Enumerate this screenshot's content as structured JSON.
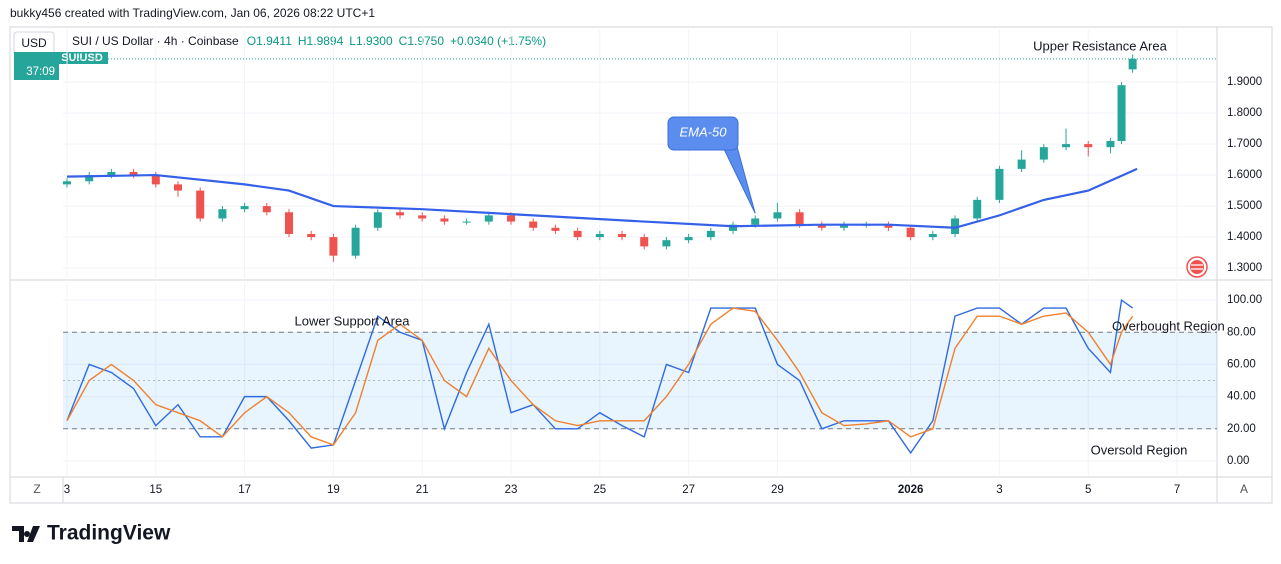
{
  "header": {
    "credit": "bukky456 created with TradingView.com, Jan 06, 2026 08:22 UTC+1",
    "currency": "USD",
    "symbol": "SUI / US Dollar · 4h · Coinbase",
    "ohlc": [
      "O1.9411",
      "H1.9894",
      "L1.9300",
      "C1.9750",
      "+0.0340 (+1.75%)"
    ],
    "countdown": "37:09",
    "ticker": "SUIUSD"
  },
  "chart_data": [
    {
      "type": "candlestick",
      "up_color": "#26a69a",
      "down_color": "#ef5350",
      "grid": true,
      "x": [
        13,
        13.5,
        14,
        14.5,
        15,
        15.5,
        16,
        16.5,
        17,
        17.5,
        18,
        18.5,
        19,
        19.5,
        20,
        20.5,
        21,
        21.5,
        22,
        22.5,
        23,
        23.5,
        24,
        24.5,
        25,
        25.5,
        26,
        26.5,
        27,
        27.5,
        28,
        28.5,
        29,
        29.5,
        30,
        30.5,
        31,
        31.5,
        32,
        32.5,
        33,
        33.5,
        34,
        34.5,
        35,
        35.5,
        36,
        36.5,
        36.75,
        37
      ],
      "open": [
        1.57,
        1.58,
        1.6,
        1.61,
        1.6,
        1.57,
        1.55,
        1.46,
        1.49,
        1.5,
        1.48,
        1.41,
        1.4,
        1.34,
        1.43,
        1.48,
        1.47,
        1.46,
        1.45,
        1.45,
        1.47,
        1.45,
        1.43,
        1.42,
        1.4,
        1.41,
        1.4,
        1.37,
        1.39,
        1.4,
        1.42,
        1.44,
        1.46,
        1.48,
        1.44,
        1.43,
        1.44,
        1.44,
        1.43,
        1.4,
        1.41,
        1.46,
        1.52,
        1.62,
        1.65,
        1.69,
        1.7,
        1.69,
        1.71,
        1.9411
      ],
      "high": [
        1.59,
        1.61,
        1.62,
        1.62,
        1.61,
        1.58,
        1.56,
        1.5,
        1.51,
        1.51,
        1.49,
        1.42,
        1.41,
        1.44,
        1.49,
        1.49,
        1.48,
        1.47,
        1.46,
        1.48,
        1.48,
        1.46,
        1.44,
        1.43,
        1.42,
        1.42,
        1.41,
        1.4,
        1.41,
        1.43,
        1.45,
        1.47,
        1.51,
        1.49,
        1.45,
        1.45,
        1.45,
        1.45,
        1.44,
        1.42,
        1.47,
        1.53,
        1.63,
        1.68,
        1.7,
        1.75,
        1.71,
        1.72,
        1.9,
        1.9894
      ],
      "low": [
        1.56,
        1.57,
        1.59,
        1.59,
        1.56,
        1.53,
        1.45,
        1.45,
        1.48,
        1.47,
        1.4,
        1.39,
        1.32,
        1.33,
        1.42,
        1.46,
        1.45,
        1.44,
        1.44,
        1.44,
        1.44,
        1.42,
        1.41,
        1.39,
        1.39,
        1.39,
        1.36,
        1.36,
        1.38,
        1.39,
        1.41,
        1.43,
        1.45,
        1.43,
        1.42,
        1.42,
        1.43,
        1.42,
        1.39,
        1.39,
        1.4,
        1.45,
        1.51,
        1.61,
        1.64,
        1.68,
        1.66,
        1.67,
        1.7,
        1.93
      ],
      "close": [
        1.58,
        1.6,
        1.61,
        1.6,
        1.57,
        1.55,
        1.46,
        1.49,
        1.5,
        1.48,
        1.41,
        1.4,
        1.34,
        1.43,
        1.48,
        1.47,
        1.46,
        1.45,
        1.45,
        1.47,
        1.45,
        1.43,
        1.42,
        1.4,
        1.41,
        1.4,
        1.37,
        1.39,
        1.4,
        1.42,
        1.44,
        1.46,
        1.48,
        1.44,
        1.43,
        1.44,
        1.44,
        1.43,
        1.4,
        1.41,
        1.46,
        1.52,
        1.62,
        1.65,
        1.69,
        1.7,
        1.69,
        1.71,
        1.89,
        1.975
      ],
      "ema": {
        "color": "#3560e8",
        "x": [
          13,
          15,
          17,
          18,
          19,
          21,
          23.5,
          26,
          28,
          30,
          31.5,
          33,
          34,
          35,
          36,
          37.1
        ],
        "values": [
          1.595,
          1.6,
          1.57,
          1.55,
          1.5,
          1.49,
          1.47,
          1.45,
          1.435,
          1.44,
          1.44,
          1.43,
          1.47,
          1.52,
          1.55,
          1.62
        ]
      },
      "xlim": [
        12.91,
        38.9
      ],
      "xticks": [
        {
          "value": 13,
          "label": "3"
        },
        15,
        17,
        19,
        21,
        23,
        25,
        27,
        29,
        {
          "value": 32,
          "label": "2026"
        },
        {
          "value": 34,
          "label": "3"
        },
        {
          "value": 36,
          "label": "5"
        },
        {
          "value": 38,
          "label": "7"
        }
      ],
      "ylim": [
        1.268,
        2.068
      ],
      "yticks": [
        {
          "value": 1.3,
          "label": "1.3000"
        },
        {
          "value": 1.4,
          "label": "1.4000"
        },
        {
          "value": 1.5,
          "label": "1.5000"
        },
        {
          "value": 1.6,
          "label": "1.6000"
        },
        {
          "value": 1.7,
          "label": "1.7000"
        },
        {
          "value": 1.8,
          "label": "1.8000"
        },
        {
          "value": 1.9,
          "label": "1.9000"
        }
      ],
      "annotations": {
        "resistance": "Upper Resistance Area",
        "ema_callout": "EMA-50"
      }
    },
    {
      "type": "oscillator",
      "grid": true,
      "x": [
        13,
        13.5,
        14,
        14.5,
        15,
        15.5,
        16,
        16.5,
        17,
        17.5,
        18,
        18.5,
        19,
        19.5,
        20,
        20.5,
        21,
        21.5,
        22,
        22.5,
        23,
        23.5,
        24,
        24.5,
        25,
        25.5,
        26,
        26.5,
        27,
        27.5,
        28,
        28.5,
        29,
        29.5,
        30,
        30.5,
        31,
        31.5,
        32,
        32.5,
        33,
        33.5,
        34,
        34.5,
        35,
        35.5,
        36,
        36.5,
        36.75,
        37
      ],
      "series": [
        {
          "color": "#2f6be0",
          "values": [
            25,
            60,
            55,
            45,
            22,
            35,
            15,
            15,
            40,
            40,
            25,
            8,
            10,
            50,
            90,
            80,
            75,
            20,
            55,
            85,
            30,
            35,
            20,
            20,
            30,
            22,
            15,
            60,
            55,
            95,
            95,
            95,
            60,
            50,
            20,
            25,
            25,
            25,
            5,
            25,
            90,
            95,
            95,
            85,
            95,
            95,
            70,
            55,
            100,
            95
          ]
        },
        {
          "color": "#f0802c",
          "values": [
            25,
            50,
            60,
            50,
            35,
            30,
            25,
            15,
            30,
            40,
            30,
            15,
            10,
            30,
            75,
            85,
            75,
            50,
            40,
            70,
            50,
            35,
            25,
            22,
            25,
            25,
            25,
            40,
            60,
            85,
            95,
            93,
            75,
            55,
            30,
            22,
            23,
            25,
            15,
            20,
            70,
            90,
            90,
            85,
            90,
            92,
            80,
            60,
            80,
            90
          ]
        }
      ],
      "bands": [
        80,
        50,
        20
      ],
      "xlim": [
        12.91,
        38.9
      ],
      "ylim": [
        -8.7,
        110.6
      ],
      "yticks": [
        {
          "value": 0,
          "label": "0.00"
        },
        {
          "value": 20,
          "label": "20.00"
        },
        {
          "value": 40,
          "label": "40.00"
        },
        {
          "value": 60,
          "label": "60.00"
        },
        {
          "value": 80,
          "label": "80.00"
        },
        {
          "value": 100,
          "label": "100.00"
        }
      ],
      "annotations": {
        "support": "Lower Support Area",
        "overbought": "Overbought Region",
        "oversold": "Oversold Region"
      }
    }
  ],
  "footer": {
    "left_button": "Z",
    "right_button": "A",
    "brand": "TradingView"
  }
}
